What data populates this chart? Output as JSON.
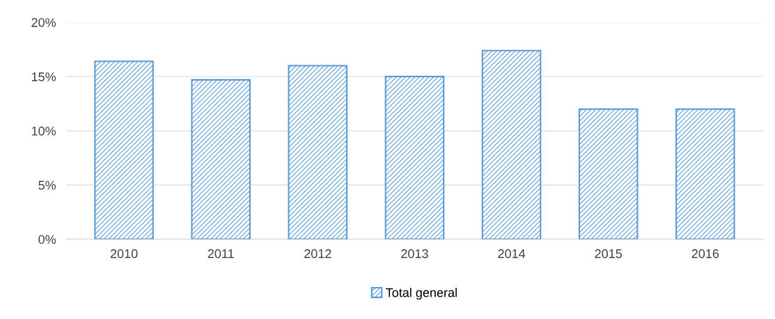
{
  "chart_data": {
    "type": "bar",
    "categories": [
      "2010",
      "2011",
      "2012",
      "2013",
      "2014",
      "2015",
      "2016"
    ],
    "series": [
      {
        "name": "Total general",
        "color": "#5b9bd5",
        "values": [
          16.4,
          14.7,
          16.0,
          15.0,
          17.4,
          12.0,
          12.0
        ]
      }
    ],
    "ylim": [
      0,
      20
    ],
    "yticks": [
      {
        "value": 0,
        "label": "0%"
      },
      {
        "value": 5,
        "label": "5%"
      },
      {
        "value": 10,
        "label": "10%"
      },
      {
        "value": 15,
        "label": "15%"
      },
      {
        "value": 20,
        "label": "20%"
      }
    ],
    "grid": "y",
    "legend": "bottom"
  }
}
